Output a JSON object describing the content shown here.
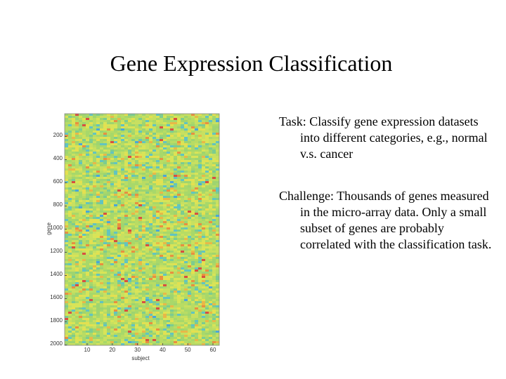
{
  "title": "Gene Expression Classification",
  "figure": {
    "y_ticks": [
      "200",
      "400",
      "600",
      "800",
      "1000",
      "1200",
      "1400",
      "1600",
      "1800",
      "2000"
    ],
    "x_ticks": [
      "10",
      "20",
      "30",
      "40",
      "50",
      "60"
    ],
    "y_label": "gene",
    "x_label": "subject"
  },
  "bullets": [
    {
      "text": "Task: Classify gene expression datasets into different categories, e.g., normal v.s. cancer"
    },
    {
      "text": "Challenge: Thousands of genes measured in the micro-array data. Only a small subset of genes are probably correlated with the classification task."
    }
  ]
}
